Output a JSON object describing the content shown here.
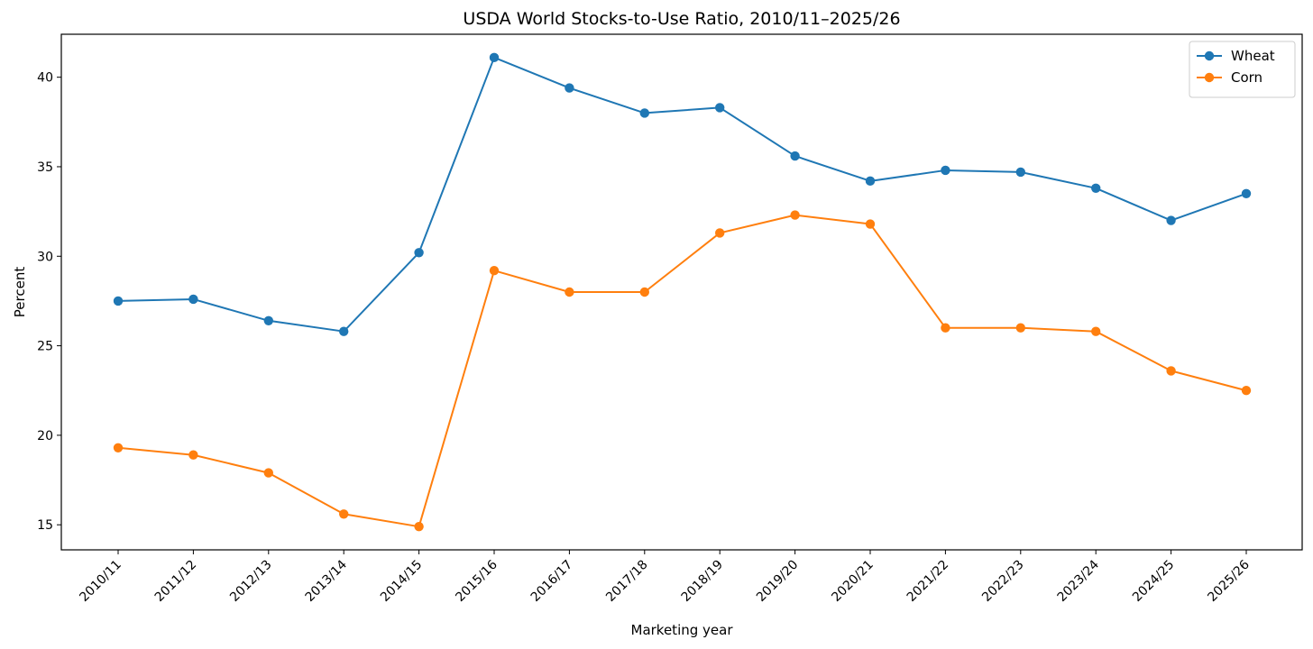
{
  "chart_data": {
    "type": "line",
    "title": "USDA World Stocks-to-Use Ratio, 2010/11–2025/26",
    "xlabel": "Marketing year",
    "ylabel": "Percent",
    "categories": [
      "2010/11",
      "2011/12",
      "2012/13",
      "2013/14",
      "2014/15",
      "2015/16",
      "2016/17",
      "2017/18",
      "2018/19",
      "2019/20",
      "2020/21",
      "2021/22",
      "2022/23",
      "2023/24",
      "2024/25",
      "2025/26"
    ],
    "ylim": [
      13.6,
      42.4
    ],
    "yticks": [
      15,
      20,
      25,
      30,
      35,
      40
    ],
    "grid": false,
    "legend_position": "top-right",
    "series": [
      {
        "name": "Wheat",
        "color": "#1f77b4",
        "values": [
          27.5,
          27.6,
          26.4,
          25.8,
          30.2,
          41.1,
          39.4,
          38.0,
          38.3,
          35.6,
          34.2,
          34.8,
          34.7,
          33.8,
          32.0,
          33.5
        ]
      },
      {
        "name": "Corn",
        "color": "#ff7f0e",
        "values": [
          19.3,
          18.9,
          17.9,
          15.6,
          14.9,
          29.2,
          28.0,
          28.0,
          31.3,
          32.3,
          31.8,
          26.0,
          26.0,
          25.8,
          23.6,
          22.5
        ]
      }
    ]
  }
}
